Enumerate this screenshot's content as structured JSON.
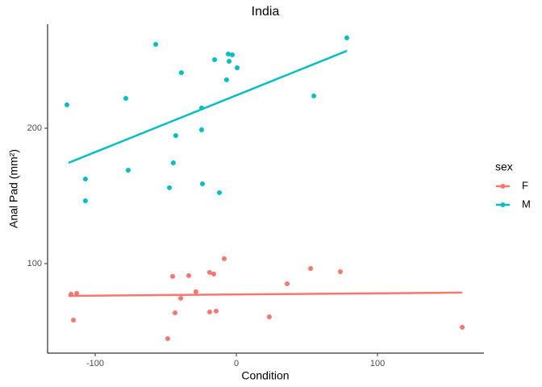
{
  "chart_data": {
    "type": "scatter",
    "title": "India",
    "x_label": "Condition",
    "y_label": "Anal Pad (mm²)",
    "legend_title": "sex",
    "legend_position": "right",
    "grid": false,
    "xlim": [
      -133.7,
      175.4
    ],
    "ylim": [
      33.9,
      276.8
    ],
    "xticks": [
      -100,
      0,
      100
    ],
    "yticks": [
      100,
      200
    ],
    "series": [
      {
        "name": "F",
        "color": "#F8766D",
        "x": [
          -117.1,
          -113.1,
          -115.4,
          -48.6,
          -45.1,
          -43.4,
          -39.4,
          -33.7,
          -28.6,
          -18.9,
          -16,
          -18.9,
          -14.3,
          -8.6,
          23.4,
          36,
          52.6,
          73.7,
          160
        ],
        "values": [
          77.4,
          78,
          58.3,
          44.6,
          90.5,
          63.7,
          74.4,
          91.1,
          79.2,
          93.5,
          92.3,
          64.3,
          64.9,
          103.6,
          60.7,
          85.1,
          96.4,
          94,
          53
        ],
        "fit": {
          "x": [
            -118.9,
            160
          ],
          "y": [
            76.2,
            78.6
          ]
        }
      },
      {
        "name": "M",
        "color": "#00BFC4",
        "x": [
          -120,
          -57.1,
          -78.3,
          -38.9,
          -15.4,
          -5.7,
          -2.9,
          -5.1,
          0.6,
          -6.9,
          -24.6,
          -24.6,
          -42.9,
          -44.6,
          -76.6,
          -106.9,
          -106.9,
          -47.4,
          -24,
          -12,
          54.9,
          78.3
        ],
        "values": [
          217.3,
          261.9,
          222,
          241,
          250.6,
          254.8,
          254.2,
          249.4,
          244.6,
          235.7,
          214.9,
          198.8,
          194.6,
          174.4,
          169,
          162.5,
          146.4,
          156,
          158.9,
          152.4,
          223.8,
          266.7
        ],
        "fit": {
          "x": [
            -118.9,
            78.3
          ],
          "y": [
            174.4,
            257.1
          ]
        }
      }
    ]
  }
}
